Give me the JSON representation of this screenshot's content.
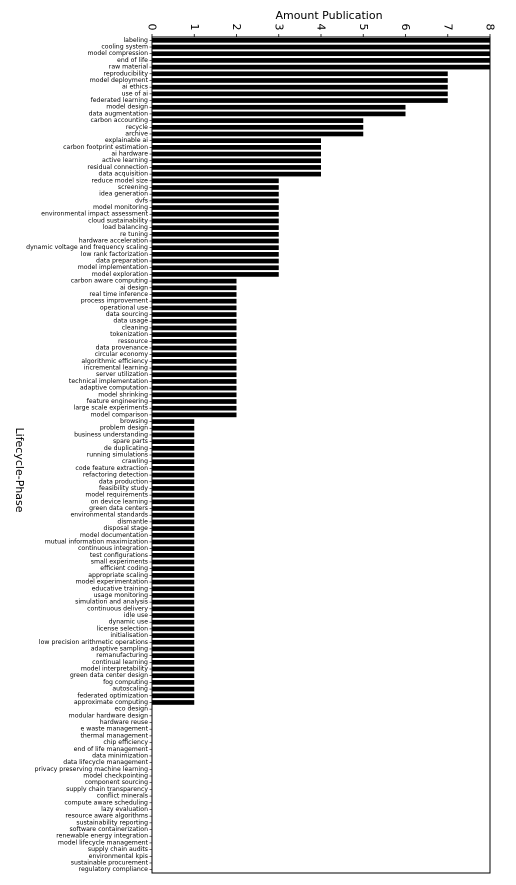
{
  "chart_data": {
    "type": "bar",
    "orientation": "horizontal",
    "xlabel": "Amount Publication",
    "ylabel": "Lifecycle-Phase",
    "xlim": [
      0,
      8
    ],
    "xticks": [
      0,
      1,
      2,
      3,
      4,
      5,
      6,
      7,
      8
    ],
    "x_axis_position": "top",
    "tick_label_rotation": 90,
    "bar_color": "#000000",
    "grid": false,
    "categories": [
      "labeling",
      "cooling system",
      "model compression",
      "end of life",
      "raw material",
      "reproducibility",
      "model deployment",
      "ai ethics",
      "use of ai",
      "federated learning",
      "model design",
      "data augmentation",
      "carbon accounting",
      "recycle",
      "archive",
      "explainable ai",
      "carbon footprint estimation",
      "ai hardware",
      "active learning",
      "residual connection",
      "data acquisition",
      "reduce model size",
      "screening",
      "idea generation",
      "dvfs",
      "model monitoring",
      "environmental impact assessment",
      "cloud sustainability",
      "load balancing",
      "re tuning",
      "hardware acceleration",
      "dynamic voltage and frequency scaling",
      "low rank factorization",
      "data preparation",
      "model implementation",
      "model exploration",
      "carbon aware computing",
      "ai design",
      "real time inference",
      "process improvement",
      "operational use",
      "data sourcing",
      "data usage",
      "cleaning",
      "tokenization",
      "ressource",
      "data provenance",
      "circular economy",
      "algorithmic efficiency",
      "incremental learning",
      "server utilization",
      "technical implementation",
      "adaptive computation",
      "model shrinking",
      "feature engineering",
      "large scale experiments",
      "model comparison",
      "browsing",
      "problem design",
      "business understanding",
      "spare parts",
      "de duplicating",
      "running simulations",
      "crawling",
      "code feature extraction",
      "refactoring detection",
      "data production",
      "feasibility study",
      "model requirements",
      "on device learning",
      "green data centers",
      "environmental standards",
      "dismantle",
      "disposal stage",
      "model documentation",
      "mutual information maximization",
      "continuous integration",
      "test configurations",
      "small experiments",
      "efficient coding",
      "appropriate scaling",
      "model experimentation",
      "educative training",
      "usage monitoring",
      "simulation and analysis",
      "continuous delivery",
      "idle use",
      "dynamic use",
      "license selection",
      "initialisation",
      "low precision arithmetic operations",
      "adaptive sampling",
      "remanufacturing",
      "continual learning",
      "model interpretability",
      "green data center design",
      "fog computing",
      "autoscaling",
      "federated optimization",
      "approximate computing",
      "eco design",
      "modular hardware design",
      "hardware reuse",
      "e waste management",
      "thermal management",
      "chip efficiency",
      "end of life management",
      "data minimization",
      "data lifecycle management",
      "privacy preserving machine learning",
      "model checkpointing",
      "component sourcing",
      "supply chain transparency",
      "conflict minerals",
      "compute aware scheduling",
      "lazy evaluation",
      "resource aware algorithms",
      "sustainability reporting",
      "software containerization",
      "renewable energy integration",
      "model lifecycle management",
      "supply chain audits",
      "environmental kpis",
      "sustainable procurement",
      "regulatory compliance"
    ],
    "values": [
      8,
      8,
      8,
      8,
      8,
      7,
      7,
      7,
      7,
      7,
      6,
      6,
      5,
      5,
      5,
      4,
      4,
      4,
      4,
      4,
      4,
      3,
      3,
      3,
      3,
      3,
      3,
      3,
      3,
      3,
      3,
      3,
      3,
      3,
      3,
      3,
      2,
      2,
      2,
      2,
      2,
      2,
      2,
      2,
      2,
      2,
      2,
      2,
      2,
      2,
      2,
      2,
      2,
      2,
      2,
      2,
      2,
      1,
      1,
      1,
      1,
      1,
      1,
      1,
      1,
      1,
      1,
      1,
      1,
      1,
      1,
      1,
      1,
      1,
      1,
      1,
      1,
      1,
      1,
      1,
      1,
      1,
      1,
      1,
      1,
      1,
      1,
      1,
      1,
      1,
      1,
      1,
      1,
      1,
      1,
      1,
      1,
      1,
      1,
      1,
      0,
      0,
      0,
      0,
      0,
      0,
      0,
      0,
      0,
      0,
      0,
      0,
      0,
      0,
      0,
      0,
      0,
      0,
      0,
      0,
      0,
      0,
      0,
      0,
      0
    ]
  }
}
